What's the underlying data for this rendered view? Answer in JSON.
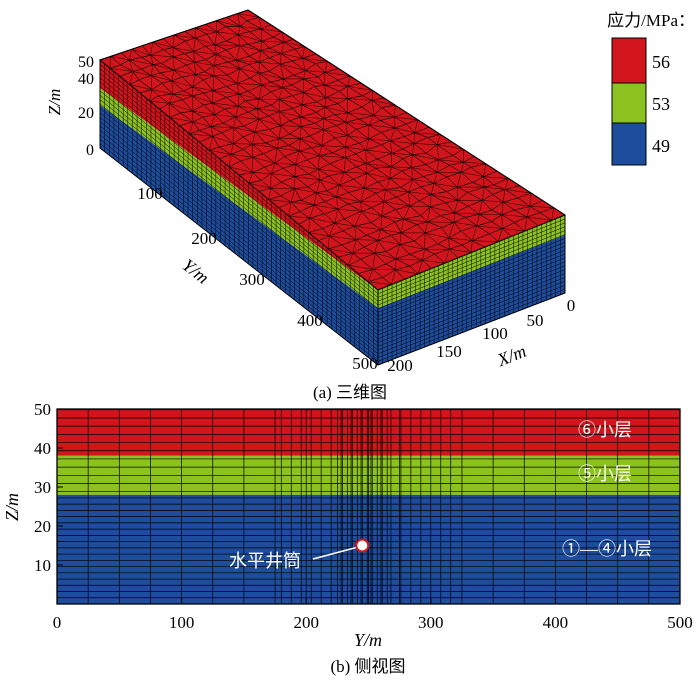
{
  "colors": {
    "red": "#d2141c",
    "green": "#8cc21f",
    "blue": "#1f4d9e",
    "mesh": "#000000",
    "frame": "#000000"
  },
  "legend": {
    "title": "应力/MPa：",
    "items": [
      {
        "label": "56",
        "color": "#d2141c"
      },
      {
        "label": "53",
        "color": "#8cc21f"
      },
      {
        "label": "49",
        "color": "#1f4d9e"
      }
    ]
  },
  "panel_a": {
    "caption": "(a) 三维图",
    "z_axis": {
      "title": "Z/m",
      "ticks": [
        "50",
        "40",
        "20",
        "0"
      ]
    },
    "y_axis": {
      "title": "Y/m",
      "ticks": [
        "100",
        "200",
        "300",
        "400",
        "500"
      ]
    },
    "x_axis": {
      "title": "X/m",
      "ticks": [
        "200",
        "150",
        "100",
        "50",
        "0"
      ]
    }
  },
  "panel_b": {
    "caption": "(b) 侧视图",
    "x_axis": {
      "title": "Y/m",
      "ticks": [
        "0",
        "100",
        "200",
        "300",
        "400",
        "500"
      ],
      "range": [
        0,
        500
      ]
    },
    "y_axis": {
      "title": "Z/m",
      "ticks": [
        "10",
        "20",
        "30",
        "40",
        "50"
      ],
      "range": [
        0,
        50
      ]
    },
    "layers": [
      {
        "label": "⑥小层",
        "z_bottom": 38,
        "z_top": 50,
        "color": "#d2141c"
      },
      {
        "label": "⑤小层",
        "z_bottom": 28,
        "z_top": 38,
        "color": "#8cc21f"
      },
      {
        "label": "①—④小层",
        "z_bottom": 0,
        "z_top": 28,
        "color": "#1f4d9e"
      }
    ],
    "wellbore": {
      "label": "水平井筒",
      "y": 245,
      "z": 15
    }
  }
}
